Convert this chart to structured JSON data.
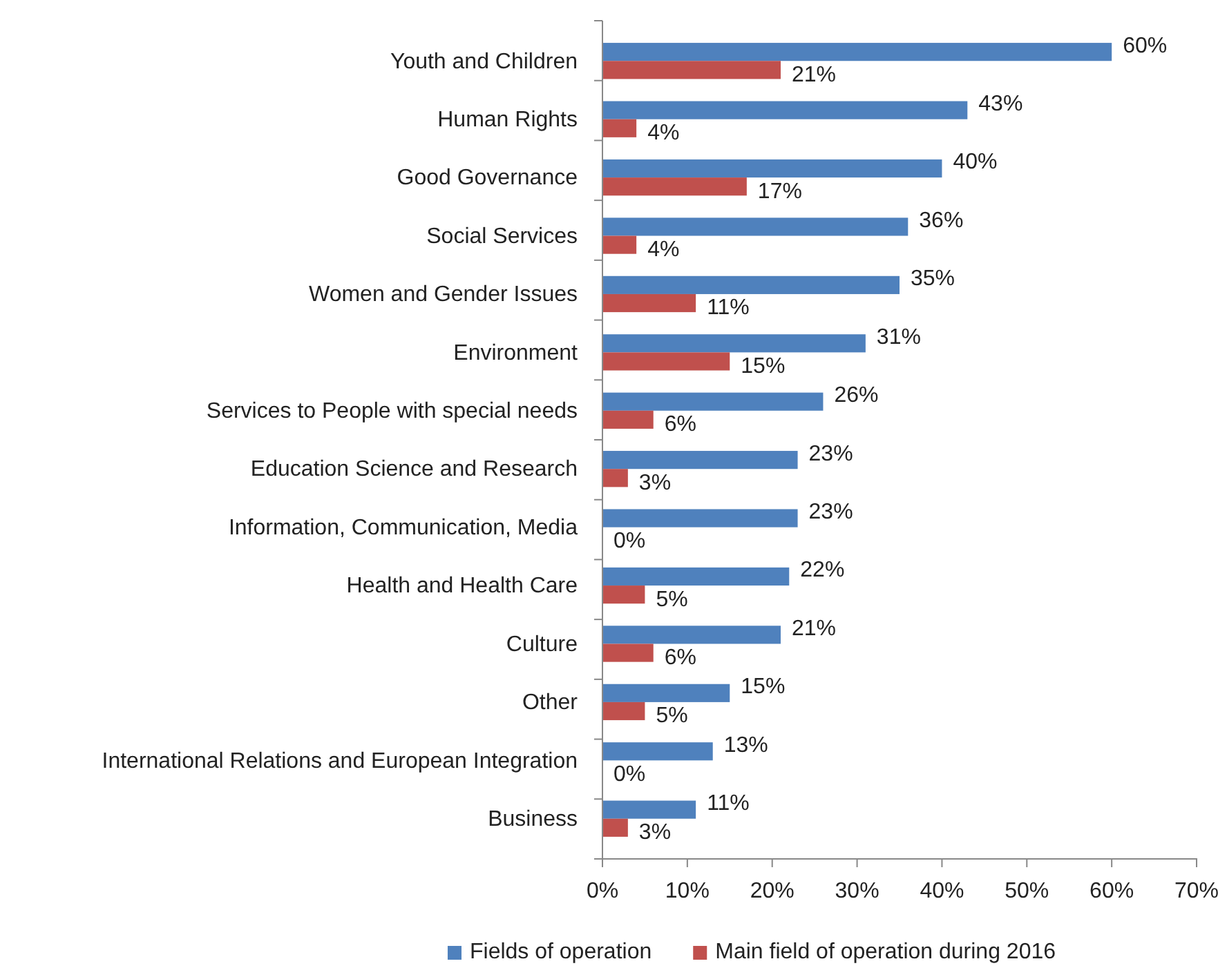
{
  "chart_data": {
    "type": "bar",
    "orientation": "horizontal",
    "categories": [
      "Youth and Children",
      "Human Rights",
      "Good Governance",
      "Social Services",
      "Women and Gender Issues",
      "Environment",
      "Services to People with special needs",
      "Education Science and Research",
      "Information, Communication, Media",
      "Health and Health Care",
      "Culture",
      "Other",
      "International Relations and European Integration",
      "Business"
    ],
    "series": [
      {
        "name": "Fields of operation",
        "color": "#4f81bd",
        "values": [
          60,
          43,
          40,
          36,
          35,
          31,
          26,
          23,
          23,
          22,
          21,
          15,
          13,
          11
        ],
        "value_labels": [
          "60%",
          "43%",
          "40%",
          "36%",
          "35%",
          "31%",
          "26%",
          "23%",
          "23%",
          "22%",
          "21%",
          "15%",
          "13%",
          "11%"
        ]
      },
      {
        "name": "Main field of operation during 2016",
        "color": "#c0504d",
        "values": [
          21,
          4,
          17,
          4,
          11,
          15,
          6,
          3,
          0,
          5,
          6,
          5,
          0,
          3
        ],
        "value_labels": [
          "21%",
          "4%",
          "17%",
          "4%",
          "11%",
          "15%",
          "6%",
          "3%",
          "0%",
          "5%",
          "6%",
          "5%",
          "0%",
          "3%"
        ]
      }
    ],
    "xlim": [
      0,
      70
    ],
    "xticks": [
      {
        "value": 0,
        "label": "0%"
      },
      {
        "value": 10,
        "label": "10%"
      },
      {
        "value": 20,
        "label": "20%"
      },
      {
        "value": 30,
        "label": "30%"
      },
      {
        "value": 40,
        "label": "40%"
      },
      {
        "value": 50,
        "label": "50%"
      },
      {
        "value": 60,
        "label": "60%"
      },
      {
        "value": 70,
        "label": "70%"
      }
    ],
    "grid": false,
    "legend": "bottom"
  }
}
